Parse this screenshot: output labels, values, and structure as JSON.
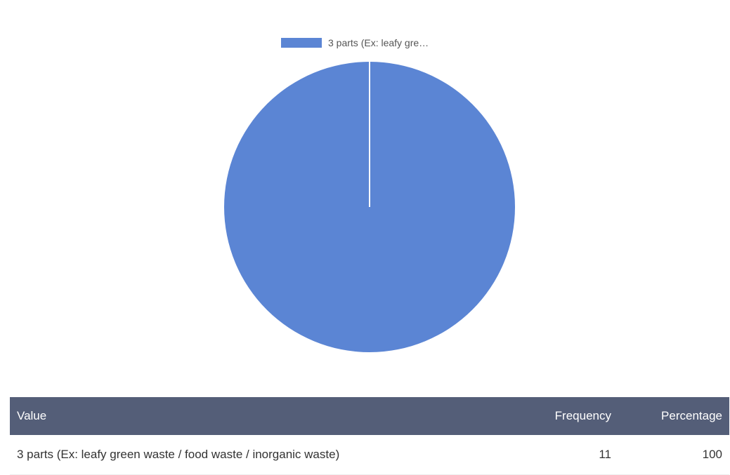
{
  "chart_data": {
    "type": "pie",
    "title": "",
    "legend_position": "top",
    "legend": [
      {
        "label": "3 parts (Ex: leafy gre…",
        "color": "#5b85d4"
      }
    ],
    "slices": [
      {
        "label": "3 parts (Ex: leafy green waste / food waste / inorganic waste)",
        "value": 11,
        "percentage": 100,
        "color": "#5b85d4"
      }
    ]
  },
  "table": {
    "headers": {
      "value": "Value",
      "frequency": "Frequency",
      "percentage": "Percentage"
    },
    "rows": [
      {
        "value": "3 parts (Ex: leafy green waste / food waste / inorganic waste)",
        "frequency": "11",
        "percentage": "100"
      }
    ]
  }
}
